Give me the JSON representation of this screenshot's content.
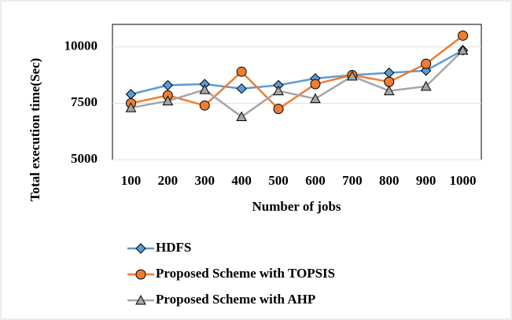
{
  "chart_data": {
    "type": "line",
    "x_label": "Number of jobs",
    "y_label": "Total execution time(Sec)",
    "categories": [
      "100",
      "200",
      "300",
      "400",
      "500",
      "600",
      "700",
      "800",
      "900",
      "1000"
    ],
    "series": [
      {
        "name": "HDFS",
        "color": "#5b9bd5",
        "marker": "diamond",
        "values": [
          7900,
          8300,
          8350,
          8150,
          8300,
          8600,
          8750,
          8850,
          8950,
          9850
        ]
      },
      {
        "name": "Proposed Scheme with TOPSIS",
        "color": "#ed7d31",
        "marker": "circle",
        "values": [
          7500,
          7850,
          7400,
          8900,
          7250,
          8350,
          8750,
          8450,
          9250,
          10500
        ]
      },
      {
        "name": "Proposed Scheme with AHP",
        "color": "#a5a5a5",
        "marker": "triangle",
        "values": [
          7300,
          7600,
          8100,
          6900,
          8050,
          7700,
          8700,
          8050,
          8250,
          9850
        ]
      }
    ],
    "ylim": [
      5000,
      11000
    ],
    "yticks": [
      5000,
      7500,
      10000
    ],
    "grid": true,
    "legend": "bottom"
  }
}
